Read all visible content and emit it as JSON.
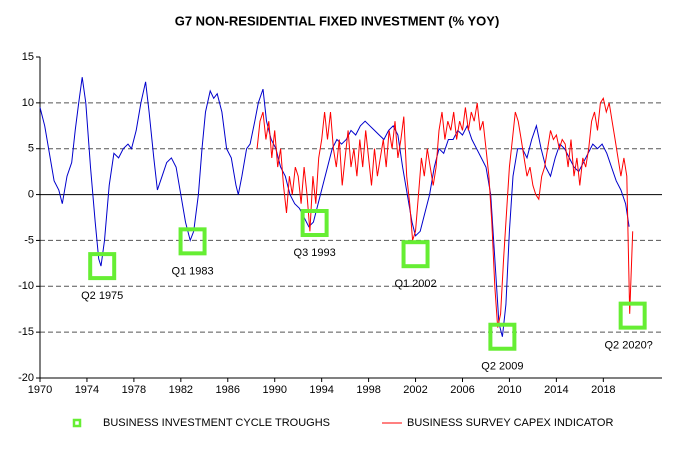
{
  "chart_data": {
    "type": "line",
    "title": "G7 NON-RESIDENTIAL FIXED INVESTMENT (% YOY)",
    "xlim": [
      1970,
      2023
    ],
    "xticks": [
      1970,
      1974,
      1978,
      1982,
      1986,
      1990,
      1994,
      1998,
      2002,
      2006,
      2010,
      2014,
      2018
    ],
    "ylim": [
      -20,
      15
    ],
    "yticks": [
      -20,
      -15,
      -10,
      -5,
      0,
      5,
      10,
      15
    ],
    "grid": true,
    "series": [
      {
        "type": "line",
        "color": "#0000cc",
        "x": [
          1970.0,
          1970.4,
          1970.8,
          1971.2,
          1971.6,
          1971.9,
          1972.3,
          1972.7,
          1973.0,
          1973.3,
          1973.6,
          1973.9,
          1974.3,
          1974.7,
          1975.0,
          1975.2,
          1975.5,
          1975.9,
          1976.3,
          1976.7,
          1977.1,
          1977.5,
          1977.8,
          1978.2,
          1978.6,
          1979.0,
          1979.3,
          1979.7,
          1980.0,
          1980.4,
          1980.8,
          1981.2,
          1981.6,
          1982.0,
          1982.4,
          1982.8,
          1983.1,
          1983.5,
          1983.8,
          1984.1,
          1984.5,
          1984.8,
          1985.1,
          1985.5,
          1985.9,
          1986.3,
          1986.7,
          1986.9,
          1987.2,
          1987.6,
          1987.9,
          1988.3,
          1988.6,
          1989.0,
          1989.3,
          1989.7,
          1990.1,
          1990.5,
          1990.9,
          1991.3,
          1991.7,
          1992.1,
          1992.5,
          1992.9,
          1993.3,
          1993.7,
          1994.1,
          1994.5,
          1994.9,
          1995.3,
          1995.7,
          1996.1,
          1996.5,
          1996.9,
          1997.3,
          1997.7,
          1998.1,
          1998.5,
          1998.9,
          1999.3,
          1999.7,
          2000.1,
          2000.5,
          2000.9,
          2001.3,
          2001.7,
          2002.0,
          2002.4,
          2002.8,
          2003.2,
          2003.6,
          2004.0,
          2004.4,
          2004.8,
          2005.2,
          2005.6,
          2006.0,
          2006.4,
          2006.8,
          2007.2,
          2007.6,
          2008.0,
          2008.4,
          2008.8,
          2009.1,
          2009.4,
          2009.7,
          2010.0,
          2010.3,
          2010.7,
          2011.1,
          2011.5,
          2011.9,
          2012.3,
          2012.7,
          2013.1,
          2013.5,
          2013.9,
          2014.3,
          2014.7,
          2015.1,
          2015.5,
          2015.9,
          2016.3,
          2016.7,
          2017.1,
          2017.5,
          2017.9,
          2018.3,
          2018.7,
          2019.1,
          2019.5,
          2019.9,
          2020.2
        ],
        "values": [
          9.5,
          7.5,
          4.5,
          1.5,
          0.5,
          -1,
          2,
          3.5,
          7,
          10,
          12.8,
          10,
          3,
          -3,
          -7,
          -7.8,
          -5,
          1,
          4.5,
          4,
          5,
          5.5,
          5,
          7,
          10,
          12.3,
          9,
          4,
          0.5,
          2,
          3.5,
          4,
          3,
          0,
          -3,
          -5,
          -4,
          0,
          5,
          9,
          11.3,
          10.5,
          11,
          9,
          5,
          4,
          1,
          0,
          2,
          5,
          5.5,
          8,
          10,
          11.5,
          8,
          6,
          5,
          3,
          2,
          0,
          -1,
          -1.5,
          -2.5,
          -3.5,
          -3,
          -1,
          1,
          3,
          5,
          6,
          5.5,
          6,
          7,
          6.5,
          7.5,
          8,
          7.5,
          7,
          6.5,
          6,
          7,
          7.5,
          6.5,
          3,
          0,
          -3,
          -4.5,
          -4,
          -2,
          0,
          3,
          5,
          4.5,
          6,
          6,
          7,
          6.5,
          7.5,
          6,
          5,
          4,
          3,
          0,
          -8,
          -14,
          -15.5,
          -12,
          -4,
          2,
          5,
          5,
          4,
          6,
          7.5,
          5,
          3,
          2,
          4,
          5.5,
          5,
          4,
          3,
          2.5,
          3.5,
          4.5,
          5.5,
          5,
          5.5,
          4.5,
          3,
          1.5,
          0.5,
          -1,
          -3.5
        ]
      },
      {
        "type": "line",
        "name": "BUSINESS SURVEY CAPEX INDICATOR",
        "color": "#ff0000",
        "x": [
          1988.5,
          1988.75,
          1989,
          1989.25,
          1989.5,
          1989.75,
          1990,
          1990.25,
          1990.5,
          1990.75,
          1991,
          1991.25,
          1991.5,
          1991.75,
          1992,
          1992.25,
          1992.5,
          1992.75,
          1993,
          1993.25,
          1993.5,
          1993.75,
          1994,
          1994.25,
          1994.5,
          1994.75,
          1995,
          1995.25,
          1995.5,
          1995.75,
          1996,
          1996.25,
          1996.5,
          1996.75,
          1997,
          1997.25,
          1997.5,
          1997.75,
          1998,
          1998.25,
          1998.5,
          1998.75,
          1999,
          1999.25,
          1999.5,
          1999.75,
          2000,
          2000.25,
          2000.5,
          2000.75,
          2001,
          2001.25,
          2001.5,
          2001.75,
          2002,
          2002.25,
          2002.5,
          2002.75,
          2003,
          2003.25,
          2003.5,
          2003.75,
          2004,
          2004.25,
          2004.5,
          2004.75,
          2005,
          2005.25,
          2005.5,
          2005.75,
          2006,
          2006.25,
          2006.5,
          2006.75,
          2007,
          2007.25,
          2007.5,
          2007.75,
          2008,
          2008.25,
          2008.5,
          2008.75,
          2009,
          2009.25,
          2009.5,
          2009.75,
          2010,
          2010.25,
          2010.5,
          2010.75,
          2011,
          2011.25,
          2011.5,
          2011.75,
          2012,
          2012.25,
          2012.5,
          2012.75,
          2013,
          2013.25,
          2013.5,
          2013.75,
          2014,
          2014.25,
          2014.5,
          2014.75,
          2015,
          2015.25,
          2015.5,
          2015.75,
          2016,
          2016.25,
          2016.5,
          2016.75,
          2017,
          2017.25,
          2017.5,
          2017.75,
          2018,
          2018.25,
          2018.5,
          2018.75,
          2019,
          2019.25,
          2019.5,
          2019.75,
          2020,
          2020.25,
          2020.5
        ],
        "values": [
          5,
          8,
          9,
          6,
          8,
          4,
          7,
          3,
          5,
          1,
          -2,
          2,
          0,
          3,
          2,
          -1,
          3,
          0,
          -4,
          2,
          -1,
          4,
          6,
          9,
          6,
          9,
          5,
          3,
          6,
          1,
          4,
          7,
          3,
          5,
          2,
          6,
          3,
          7,
          4,
          1,
          5,
          2,
          4,
          6,
          3,
          7,
          5,
          8,
          4,
          6,
          8.5,
          2,
          -1,
          -5,
          -4,
          0,
          4,
          2,
          5,
          3,
          1,
          3,
          7,
          9,
          6,
          8,
          7,
          9,
          6,
          8,
          7,
          9.5,
          7,
          9,
          8,
          10,
          7,
          8,
          5,
          2,
          -3,
          -10,
          -14.5,
          -13,
          -7,
          -2,
          3,
          6,
          9,
          8,
          6,
          4,
          2,
          3,
          1,
          0,
          -0.5,
          2,
          3,
          5,
          7,
          6,
          6.5,
          5,
          6,
          5.5,
          3,
          6,
          2,
          4,
          1,
          4,
          3,
          5,
          8,
          9,
          7,
          10,
          10.5,
          9,
          10,
          8,
          6,
          4,
          2,
          4,
          2,
          -13,
          -4
        ]
      },
      {
        "type": "scatter",
        "name": "BUSINESS INVESTMENT CYCLE TROUGHS",
        "color": "#66ee33",
        "x": [
          1975.3,
          1983.0,
          1993.4,
          2002.0,
          2009.4,
          2020.5
        ],
        "values": [
          -7.8,
          -5.1,
          -3.1,
          -6.5,
          -15.5,
          -13.2
        ],
        "labels": [
          "Q2 1975",
          "Q1 1983",
          "Q3 1993",
          "Q1 2002",
          "Q2 2009",
          "Q2 2020?"
        ]
      }
    ]
  }
}
